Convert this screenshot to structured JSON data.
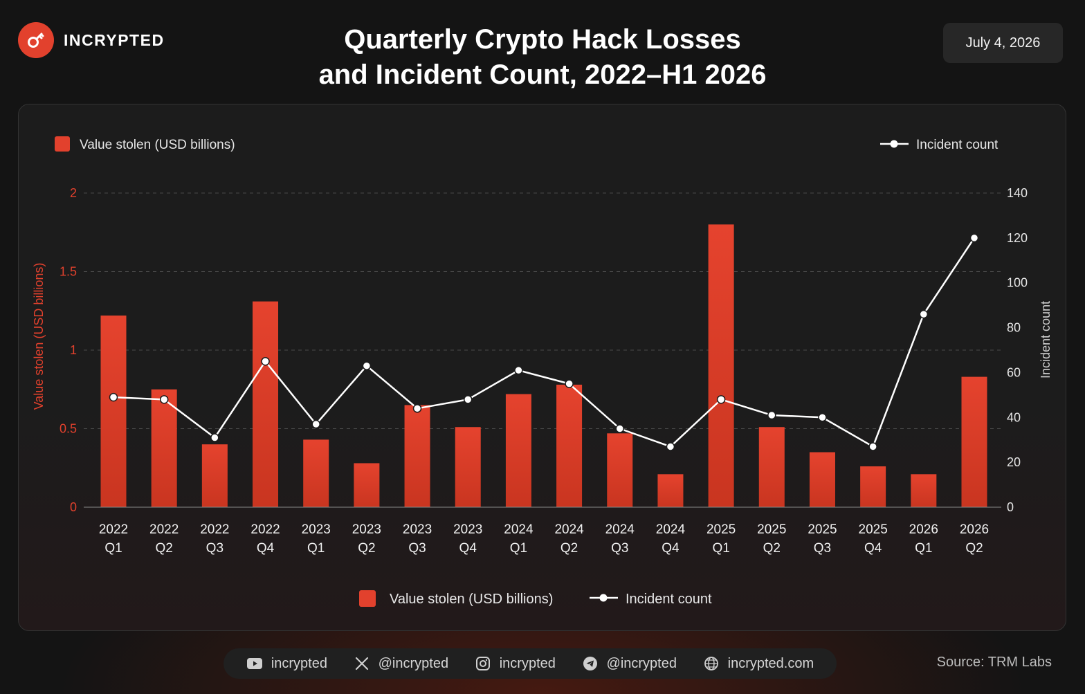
{
  "brand": {
    "name": "INCRYPTED",
    "logo": "key-logo-icon",
    "accent": "#e2412d"
  },
  "header": {
    "title_line1": "Quarterly Crypto Hack Losses",
    "title_line2": "and Incident Count, 2022–H1 2026",
    "date": "July 4, 2026"
  },
  "chart_data": {
    "type": "bar",
    "categories": [
      [
        "2022",
        "Q1"
      ],
      [
        "2022",
        "Q2"
      ],
      [
        "2022",
        "Q3"
      ],
      [
        "2022",
        "Q4"
      ],
      [
        "2023",
        "Q1"
      ],
      [
        "2023",
        "Q2"
      ],
      [
        "2023",
        "Q3"
      ],
      [
        "2023",
        "Q4"
      ],
      [
        "2024",
        "Q1"
      ],
      [
        "2024",
        "Q2"
      ],
      [
        "2024",
        "Q3"
      ],
      [
        "2024",
        "Q4"
      ],
      [
        "2025",
        "Q1"
      ],
      [
        "2025",
        "Q2"
      ],
      [
        "2025",
        "Q3"
      ],
      [
        "2025",
        "Q4"
      ],
      [
        "2026",
        "Q1"
      ],
      [
        "2026",
        "Q2"
      ]
    ],
    "series": [
      {
        "name": "Value stolen (USD billions)",
        "type": "bar",
        "axis": "left",
        "color": "#e2412d",
        "values": [
          1.22,
          0.75,
          0.4,
          1.31,
          0.43,
          0.28,
          0.65,
          0.51,
          0.72,
          0.78,
          0.47,
          0.21,
          1.8,
          0.51,
          0.35,
          0.26,
          0.21,
          0.83
        ]
      },
      {
        "name": "Incident count",
        "type": "line",
        "axis": "right",
        "color": "#ffffff",
        "values": [
          49,
          48,
          31,
          65,
          37,
          63,
          44,
          48,
          61,
          55,
          35,
          27,
          48,
          41,
          40,
          27,
          86,
          120
        ]
      }
    ],
    "left_axis": {
      "label": "Value stolen (USD billions)",
      "ticks": [
        "0",
        "0.5",
        "1",
        "1.5",
        "2"
      ],
      "range": [
        0,
        2
      ],
      "color": "#e2412d"
    },
    "right_axis": {
      "label": "Incident count",
      "ticks": [
        "0",
        "20",
        "40",
        "60",
        "80",
        "100",
        "120",
        "140"
      ],
      "range": [
        0,
        140
      ],
      "color": "#cfcfcf"
    },
    "grid": true,
    "legend_top": {
      "bar_label": "Value stolen (USD billions)",
      "line_label": "Incident count"
    },
    "legend_bottom": {
      "bar_label": "Value stolen (USD billions)",
      "line_label": "Incident count"
    }
  },
  "footer": {
    "socials": [
      {
        "icon": "youtube-icon",
        "text": "incrypted"
      },
      {
        "icon": "x-icon",
        "text": "@incrypted"
      },
      {
        "icon": "instagram-icon",
        "text": "incrypted"
      },
      {
        "icon": "telegram-icon",
        "text": "@incrypted"
      },
      {
        "icon": "globe-icon",
        "text": "incrypted.com"
      }
    ],
    "source": "Source: TRM Labs"
  }
}
